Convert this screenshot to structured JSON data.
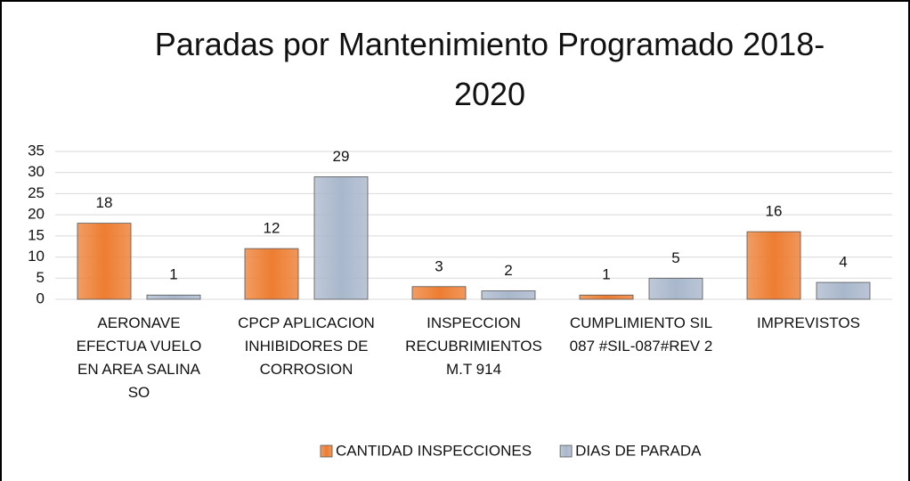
{
  "chart_data": {
    "type": "bar",
    "title": "Paradas por Mantenimiento Programado 2018-2020",
    "categories": [
      "AERONAVE EFECTUA VUELO EN AREA SALINA SO",
      "CPCP APLICACION INHIBIDORES DE CORROSION",
      "INSPECCION RECUBRIMIENTOS M.T 914",
      "CUMPLIMIENTO SIL 087 #SIL-087#REV 2",
      "IMPREVISTOS"
    ],
    "series": [
      {
        "name": "CANTIDAD INSPECCIONES",
        "color": "#ed7d31",
        "values": [
          18,
          12,
          3,
          1,
          16
        ]
      },
      {
        "name": "DIAS DE PARADA",
        "color": "#a9b7cc",
        "values": [
          1,
          29,
          2,
          5,
          4
        ]
      }
    ],
    "ylim": [
      0,
      35
    ],
    "yticks": [
      0,
      5,
      10,
      15,
      20,
      25,
      30,
      35
    ],
    "grid": true,
    "legend": "bottom"
  }
}
